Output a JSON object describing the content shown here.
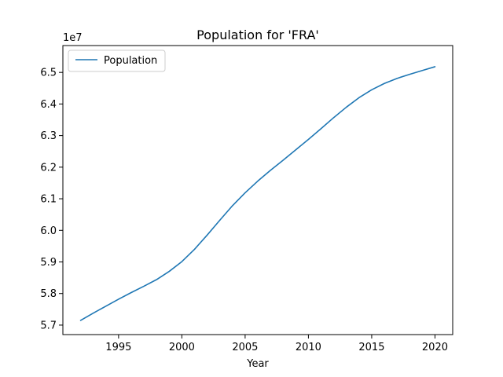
{
  "chart_data": {
    "type": "line",
    "title": "Population for 'FRA'",
    "xlabel": "Year",
    "ylabel": "",
    "y_offset_label": "1e7",
    "legend_placement": "upper-left",
    "grid": false,
    "xlim": [
      1990.6,
      2021.4
    ],
    "ylim": [
      56.7,
      65.85
    ],
    "x_ticks": [
      1995,
      2000,
      2005,
      2010,
      2015,
      2020
    ],
    "x_tick_labels": [
      "1995",
      "2000",
      "2005",
      "2010",
      "2015",
      "2020"
    ],
    "y_ticks": [
      57.0,
      58.0,
      59.0,
      60.0,
      61.0,
      62.0,
      63.0,
      64.0,
      65.0
    ],
    "y_tick_labels": [
      "5.7",
      "5.8",
      "5.9",
      "6.0",
      "6.1",
      "6.2",
      "6.3",
      "6.4",
      "6.5"
    ],
    "series": [
      {
        "name": "Population",
        "color": "#1f77b4",
        "x": [
          1992,
          1993,
          1994,
          1995,
          1996,
          1997,
          1998,
          1999,
          2000,
          2001,
          2002,
          2003,
          2004,
          2005,
          2006,
          2007,
          2008,
          2009,
          2010,
          2011,
          2012,
          2013,
          2014,
          2015,
          2016,
          2017,
          2018,
          2019,
          2020
        ],
        "values": [
          57.15,
          57.38,
          57.6,
          57.82,
          58.03,
          58.23,
          58.44,
          58.7,
          59.01,
          59.4,
          59.85,
          60.32,
          60.78,
          61.19,
          61.56,
          61.9,
          62.22,
          62.55,
          62.88,
          63.22,
          63.57,
          63.9,
          64.2,
          64.45,
          64.65,
          64.81,
          64.94,
          65.06,
          65.18
        ]
      }
    ]
  }
}
